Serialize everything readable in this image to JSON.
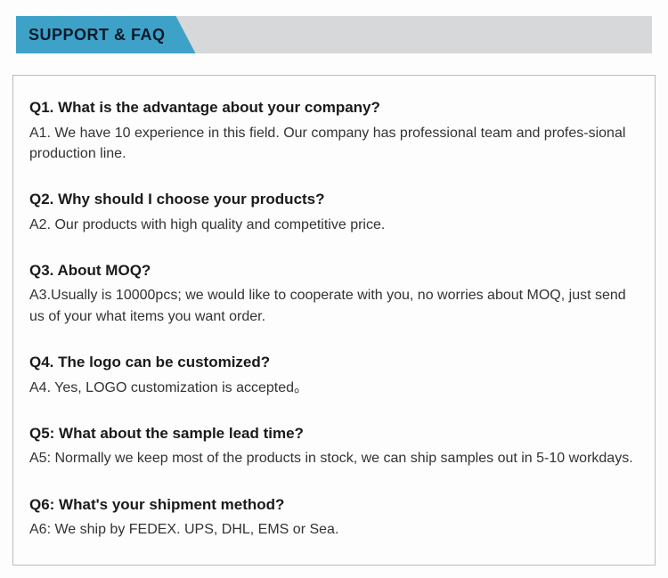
{
  "header": {
    "title": "SUPPORT & FAQ",
    "tab_bg": "#3ea2c8",
    "bar_bg": "#d7d8d9",
    "text_color": "#0a1a2a"
  },
  "content": {
    "border_color": "#bcbcbc",
    "background": "#ffffff"
  },
  "faq": [
    {
      "q": "Q1. What is the advantage about your company?",
      "a": "A1. We have 10 experience in this field. Our company has professional team and profes-sional production line."
    },
    {
      "q": "Q2. Why should I choose your products?",
      "a": "A2. Our products with high quality and competitive price."
    },
    {
      "q": "Q3. About MOQ?",
      "a": "A3.Usually is 10000pcs; we would like to cooperate with you, no worries about MOQ, just send us of your what items you want order."
    },
    {
      "q": "Q4. The logo can be customized?",
      "a": "A4. Yes, LOGO customization is accepted。"
    },
    {
      "q": "Q5: What about the sample lead time?",
      "a": "A5: Normally we keep most of the products in stock, we can ship samples out in 5-10 workdays."
    },
    {
      "q": "Q6: What's your shipment method?",
      "a": "A6: We ship by FEDEX. UPS, DHL, EMS or Sea."
    }
  ]
}
